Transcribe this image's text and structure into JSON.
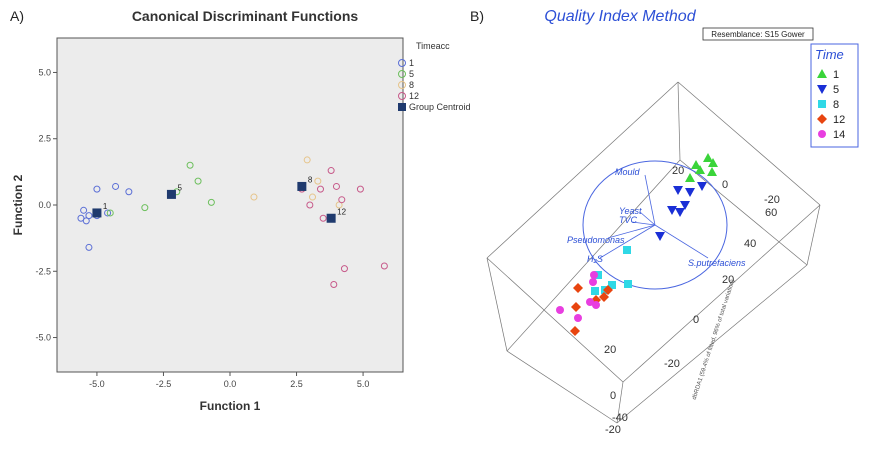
{
  "panel_a": {
    "letter": "A)",
    "chart_data": {
      "type": "scatter",
      "title": "Canonical Discriminant Functions",
      "xlabel": "Function 1",
      "ylabel": "Function 2",
      "xlim": [
        -6.5,
        6.5
      ],
      "ylim": [
        -6.3,
        6.3
      ],
      "x_ticks": [
        "-5.0",
        "-2.5",
        "0.0",
        "2.5",
        "5.0"
      ],
      "y_ticks": [
        "5.0",
        "2.5",
        "0.0",
        "-2.5",
        "-5.0"
      ],
      "legend_title": "Timeacc",
      "series": [
        {
          "name": "1",
          "color": "#5b6fd6",
          "marker": "circle",
          "points": [
            [
              -5.5,
              -0.2
            ],
            [
              -5.4,
              -0.6
            ],
            [
              -5.3,
              -0.4
            ],
            [
              -5.3,
              -1.6
            ],
            [
              -5.0,
              0.6
            ],
            [
              -5.0,
              -0.4
            ],
            [
              -4.6,
              -0.3
            ],
            [
              -4.3,
              0.7
            ],
            [
              -3.8,
              0.5
            ],
            [
              -5.6,
              -0.5
            ]
          ]
        },
        {
          "name": "5",
          "color": "#6cbf5c",
          "marker": "circle",
          "points": [
            [
              -4.5,
              -0.3
            ],
            [
              -3.2,
              -0.1
            ],
            [
              -1.5,
              1.5
            ],
            [
              -1.2,
              0.9
            ],
            [
              -0.7,
              0.1
            ],
            [
              -2.0,
              0.5
            ]
          ]
        },
        {
          "name": "8",
          "color": "#e6c48a",
          "marker": "circle",
          "points": [
            [
              0.9,
              0.3
            ],
            [
              2.9,
              1.7
            ],
            [
              3.3,
              0.9
            ],
            [
              3.1,
              0.3
            ],
            [
              4.1,
              0.0
            ]
          ]
        },
        {
          "name": "12",
          "color": "#c75a8a",
          "marker": "circle",
          "points": [
            [
              2.7,
              0.6
            ],
            [
              3.0,
              0.0
            ],
            [
              3.4,
              0.6
            ],
            [
              3.5,
              -0.5
            ],
            [
              3.8,
              1.3
            ],
            [
              4.0,
              0.7
            ],
            [
              4.3,
              -2.4
            ],
            [
              4.9,
              0.6
            ],
            [
              5.8,
              -2.3
            ],
            [
              4.2,
              0.2
            ],
            [
              3.9,
              -3.0
            ]
          ]
        }
      ],
      "centroids": {
        "name": "Group Centroid",
        "color": "#1f3a6e",
        "points": [
          {
            "label": "1",
            "x": -5.0,
            "y": -0.3
          },
          {
            "label": "5",
            "x": -2.2,
            "y": 0.4
          },
          {
            "label": "8",
            "x": 2.7,
            "y": 0.7
          },
          {
            "label": "12",
            "x": 3.8,
            "y": -0.5
          }
        ]
      }
    }
  },
  "panel_b": {
    "letter": "B)",
    "title": "Quality Index Method",
    "resemblance": "Resemblance: S15 Gower",
    "legend_title": "Time",
    "legend": [
      {
        "label": "1",
        "color": "#3ad43a",
        "marker": "triangle-up"
      },
      {
        "label": "5",
        "color": "#1a2fd6",
        "marker": "triangle-down"
      },
      {
        "label": "8",
        "color": "#2fd8e6",
        "marker": "square"
      },
      {
        "label": "12",
        "color": "#e8440f",
        "marker": "diamond"
      },
      {
        "label": "14",
        "color": "#e83ee0",
        "marker": "circle"
      }
    ],
    "vectors": [
      "Mould",
      "Yeast",
      "TVC",
      "Pseudomonas",
      "H₂S",
      "S.putrefaciens"
    ],
    "axis_ticks": {
      "right_depth": [
        "-20",
        "0",
        "20",
        "40",
        "60"
      ],
      "front_depth": [
        "-20",
        "0",
        "20"
      ],
      "vertical": [
        "-40",
        "-20"
      ]
    },
    "axis_label": "dbRDA1 (59.4% of fitted, 96% of total variation)",
    "chart_data": {
      "type": "scatter",
      "series": [
        {
          "name": "1",
          "points": "cluster-upper-right"
        },
        {
          "name": "5",
          "points": "cluster-center"
        },
        {
          "name": "8",
          "points": "cluster-lower-left"
        },
        {
          "name": "12",
          "points": "cluster-lower-left"
        },
        {
          "name": "14",
          "points": "cluster-lower-left"
        }
      ]
    }
  }
}
